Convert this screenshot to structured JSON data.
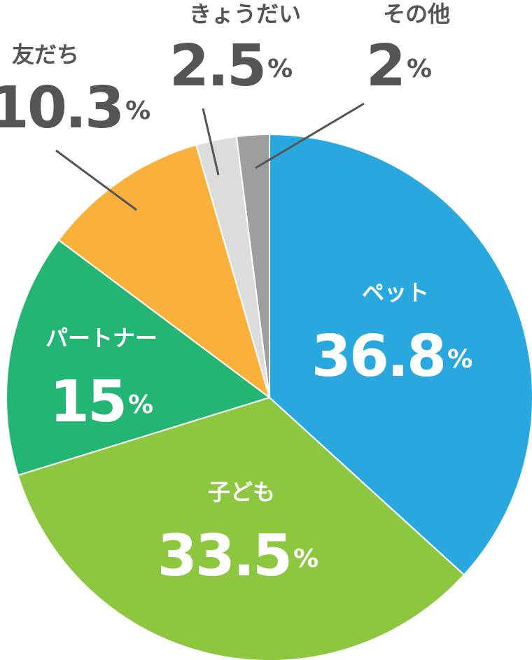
{
  "chart_data": {
    "type": "pie",
    "categories": [
      "ペット",
      "子ども",
      "パートナー",
      "友だち",
      "きょうだい",
      "その他"
    ],
    "values": [
      36.8,
      33.5,
      15,
      10.3,
      2.5,
      2
    ],
    "unit": "%",
    "colors": [
      "#29a8e0",
      "#8dc63f",
      "#22b573",
      "#fbb03b",
      "#dcdcdc",
      "#9e9e9e"
    ]
  }
}
